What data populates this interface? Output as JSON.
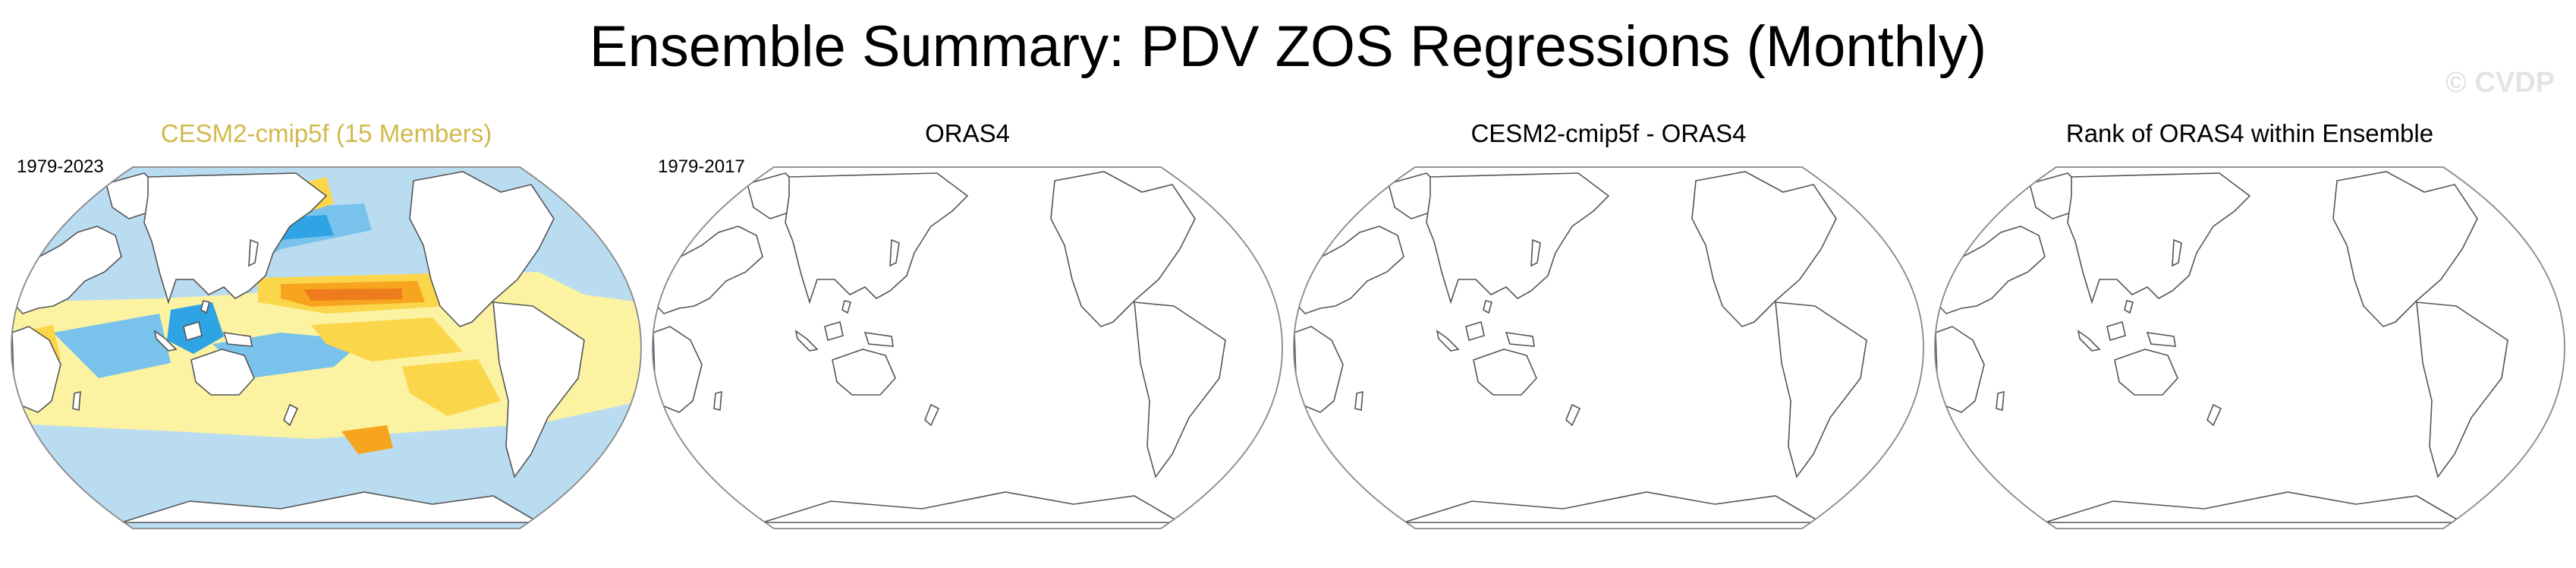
{
  "figure": {
    "title": "Ensemble Summary: PDV ZOS Regressions (Monthly)",
    "watermark": "© CVDP"
  },
  "panels": [
    {
      "title": "CESM2-cmip5f (15 Members)",
      "years": "1979-2023",
      "filled": true
    },
    {
      "title": "ORAS4",
      "years": "1979-2017",
      "filled": false
    },
    {
      "title": "CESM2-cmip5f - ORAS4",
      "years": "",
      "filled": false
    },
    {
      "title": "Rank of ORAS4 within Ensemble",
      "years": "",
      "filled": false
    }
  ],
  "colors": {
    "ocean_base": "#b9dcf1",
    "negative_mid": "#78c2ec",
    "negative_strong": "#2ea4e4",
    "positive_weak": "#fbf2a2",
    "positive_mid": "#fbd64a",
    "positive_strong": "#f7a41e",
    "positive_peak": "#ef7c1c",
    "title_accent": "#d2b94c",
    "coastline": "#555555"
  }
}
